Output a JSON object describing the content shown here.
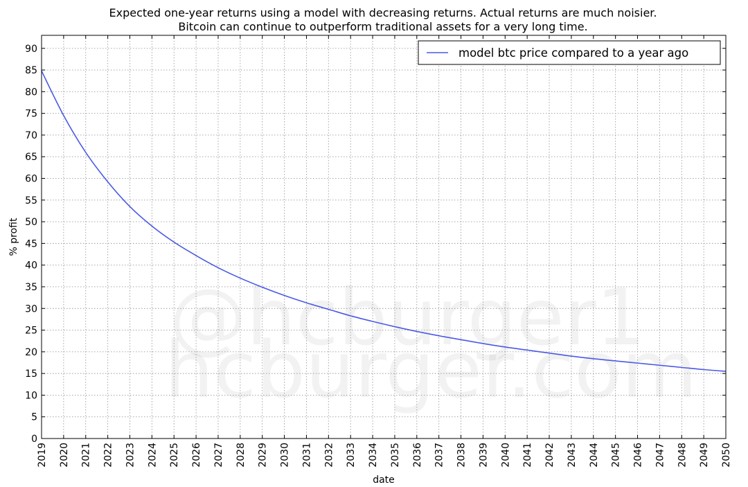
{
  "chart_data": {
    "type": "line",
    "title": "Expected one-year returns using a model with decreasing returns. Actual returns are much noisier.",
    "subtitle": "Bitcoin can continue to outperform traditional assets for a very long time.",
    "xlabel": "date",
    "ylabel": "% profit",
    "xlim": [
      2019,
      2050
    ],
    "ylim": [
      0,
      93
    ],
    "x_ticks": [
      "2019",
      "2020",
      "2021",
      "2022",
      "2023",
      "2024",
      "2025",
      "2026",
      "2027",
      "2028",
      "2029",
      "2030",
      "2031",
      "2032",
      "2033",
      "2034",
      "2035",
      "2036",
      "2037",
      "2038",
      "2039",
      "2040",
      "2041",
      "2042",
      "2043",
      "2044",
      "2045",
      "2046",
      "2047",
      "2048",
      "2049",
      "2050"
    ],
    "y_ticks": [
      0,
      5,
      10,
      15,
      20,
      25,
      30,
      35,
      40,
      45,
      50,
      55,
      60,
      65,
      70,
      75,
      80,
      85,
      90
    ],
    "grid": true,
    "legend_position": "top-right",
    "watermark": [
      "@hcburger1",
      "hcburger.com"
    ],
    "series": [
      {
        "name": "model btc price compared to a year ago",
        "color": "#4a59e6",
        "x": [
          2019,
          2020,
          2021,
          2022,
          2023,
          2024,
          2025,
          2026,
          2027,
          2028,
          2029,
          2030,
          2031,
          2032,
          2033,
          2034,
          2035,
          2036,
          2037,
          2038,
          2039,
          2040,
          2041,
          2042,
          2043,
          2044,
          2045,
          2046,
          2047,
          2048,
          2049,
          2050
        ],
        "values": [
          84.8,
          74.5,
          66.0,
          59.2,
          53.5,
          49.0,
          45.3,
          42.2,
          39.4,
          37.0,
          34.9,
          33.0,
          31.3,
          29.8,
          28.3,
          27.0,
          25.8,
          24.7,
          23.7,
          22.8,
          21.9,
          21.1,
          20.4,
          19.7,
          19.0,
          18.4,
          17.9,
          17.4,
          16.9,
          16.4,
          15.9,
          15.5
        ]
      }
    ]
  }
}
